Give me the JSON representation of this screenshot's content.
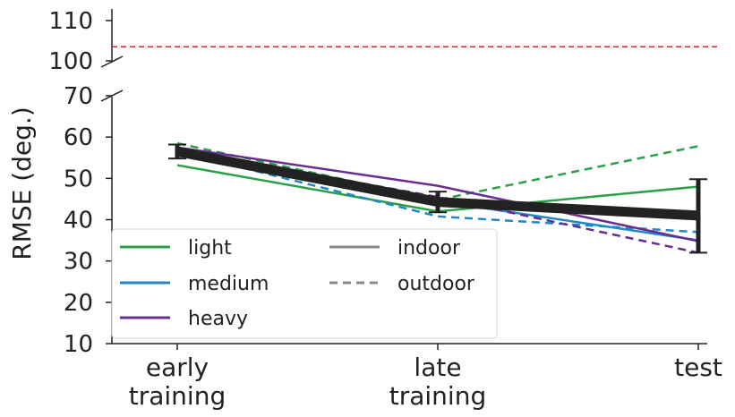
{
  "chart_data": {
    "type": "line",
    "ylabel": "RMSE (deg.)",
    "xlabel": "",
    "categories": [
      [
        "early",
        "training"
      ],
      [
        "late",
        "training"
      ],
      [
        "test"
      ]
    ],
    "y_axis_lower": {
      "range": [
        10,
        70
      ],
      "ticks": [
        "10",
        "20",
        "30",
        "40",
        "50",
        "60",
        "70"
      ]
    },
    "y_axis_upper": {
      "range": [
        100,
        110
      ],
      "ticks": [
        "100",
        "110"
      ]
    },
    "axis_break": true,
    "reference_line": {
      "y": 103.5,
      "color": "#d62728",
      "style": "dashed"
    },
    "series": [
      {
        "name": "light",
        "condition": "indoor",
        "color": "#2ca048",
        "style": "solid",
        "values": [
          53.2,
          42.0,
          48.0
        ]
      },
      {
        "name": "light",
        "condition": "outdoor",
        "color": "#2ca048",
        "style": "dashed",
        "values": [
          58.5,
          44.8,
          57.8
        ]
      },
      {
        "name": "medium",
        "condition": "indoor",
        "color": "#1f88c8",
        "style": "solid",
        "values": [
          56.0,
          44.5,
          35.0
        ]
      },
      {
        "name": "medium",
        "condition": "outdoor",
        "color": "#1f88c8",
        "style": "dashed",
        "values": [
          56.5,
          40.8,
          37.0
        ]
      },
      {
        "name": "heavy",
        "condition": "indoor",
        "color": "#6a2c91",
        "style": "solid",
        "values": [
          57.5,
          48.2,
          34.8
        ]
      },
      {
        "name": "heavy",
        "condition": "outdoor",
        "color": "#6a2c91",
        "style": "dashed",
        "values": [
          56.8,
          45.5,
          32.0
        ]
      }
    ],
    "mean": {
      "color": "#222222",
      "values": [
        56.5,
        44.3,
        41.0
      ],
      "error": [
        [
          54.8,
          58.2
        ],
        [
          41.8,
          46.8
        ],
        [
          32.0,
          49.8
        ]
      ]
    },
    "legend": {
      "placement": "bottom-left",
      "entries": [
        {
          "label": "light",
          "color": "#2ca048",
          "style": "solid"
        },
        {
          "label": "medium",
          "color": "#1f88c8",
          "style": "solid"
        },
        {
          "label": "heavy",
          "color": "#6a2c91",
          "style": "solid"
        },
        {
          "label": "indoor",
          "color": "#8a8a8a",
          "style": "solid"
        },
        {
          "label": "outdoor",
          "color": "#8a8a8a",
          "style": "dashed"
        }
      ]
    },
    "grid": false
  }
}
